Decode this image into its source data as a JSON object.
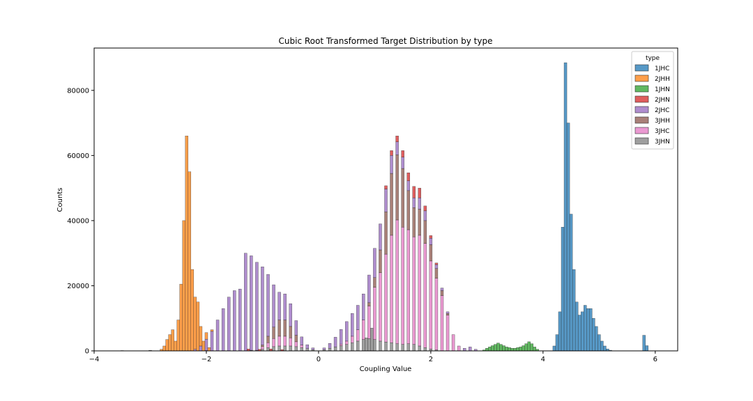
{
  "chart_data": {
    "type": "bar",
    "subtype": "stacked-histogram",
    "title": "Cubic Root Transformed Target Distribution by type",
    "xlabel": "Coupling Value",
    "ylabel": "Counts",
    "xlim": [
      -4.0,
      6.4
    ],
    "ylim": [
      0,
      93000
    ],
    "xticks": [
      {
        "value": -4,
        "label": "−4"
      },
      {
        "value": -2,
        "label": "−2"
      },
      {
        "value": 0,
        "label": "0"
      },
      {
        "value": 2,
        "label": "2"
      },
      {
        "value": 4,
        "label": "4"
      },
      {
        "value": 6,
        "label": "6"
      }
    ],
    "yticks": [
      {
        "value": 0,
        "label": "0"
      },
      {
        "value": 20000,
        "label": "20000"
      },
      {
        "value": 40000,
        "label": "40000"
      },
      {
        "value": 60000,
        "label": "60000"
      },
      {
        "value": 80000,
        "label": "80000"
      }
    ],
    "grid": false,
    "bin_width": 0.05,
    "legend": {
      "title": "type",
      "placement": "top-right"
    },
    "series_names": [
      "1JHC",
      "2JHH",
      "1JHN",
      "2JHN",
      "2JHC",
      "3JHH",
      "3JHC",
      "3JHN"
    ],
    "stack_order": [
      "3JHN",
      "3JHC",
      "3JHH",
      "2JHC",
      "2JHN",
      "1JHN",
      "2JHH",
      "1JHC"
    ],
    "series": [
      {
        "name": "1JHC",
        "color": "#1f77b4",
        "values": [
          {
            "x": 4.2,
            "y": 1500
          },
          {
            "x": 4.25,
            "y": 5000
          },
          {
            "x": 4.3,
            "y": 12000
          },
          {
            "x": 4.35,
            "y": 38000
          },
          {
            "x": 4.4,
            "y": 88500
          },
          {
            "x": 4.45,
            "y": 70000
          },
          {
            "x": 4.5,
            "y": 42000
          },
          {
            "x": 4.55,
            "y": 25000
          },
          {
            "x": 4.6,
            "y": 15000
          },
          {
            "x": 4.65,
            "y": 11000
          },
          {
            "x": 4.7,
            "y": 12000
          },
          {
            "x": 4.75,
            "y": 14000
          },
          {
            "x": 4.8,
            "y": 13000
          },
          {
            "x": 4.85,
            "y": 13000
          },
          {
            "x": 4.9,
            "y": 10000
          },
          {
            "x": 4.95,
            "y": 7500
          },
          {
            "x": 5.0,
            "y": 5000
          },
          {
            "x": 5.05,
            "y": 3000
          },
          {
            "x": 5.1,
            "y": 1500
          },
          {
            "x": 5.15,
            "y": 600
          },
          {
            "x": 5.2,
            "y": 200
          },
          {
            "x": 5.8,
            "y": 4800
          },
          {
            "x": 5.85,
            "y": 1600
          }
        ]
      },
      {
        "name": "2JHH",
        "color": "#ff7f0e",
        "values": [
          {
            "x": -2.8,
            "y": 500
          },
          {
            "x": -2.75,
            "y": 1500
          },
          {
            "x": -2.7,
            "y": 3500
          },
          {
            "x": -2.65,
            "y": 5000
          },
          {
            "x": -2.6,
            "y": 6500
          },
          {
            "x": -2.55,
            "y": 3000
          },
          {
            "x": -2.5,
            "y": 9500
          },
          {
            "x": -2.45,
            "y": 20500
          },
          {
            "x": -2.4,
            "y": 40000
          },
          {
            "x": -2.35,
            "y": 66000
          },
          {
            "x": -2.3,
            "y": 55000
          },
          {
            "x": -2.25,
            "y": 25000
          },
          {
            "x": -2.2,
            "y": 16000
          },
          {
            "x": -2.15,
            "y": 15000
          },
          {
            "x": -2.1,
            "y": 6000
          },
          {
            "x": -2.05,
            "y": 3000
          },
          {
            "x": -2.0,
            "y": 2000
          },
          {
            "x": -1.95,
            "y": 1000
          },
          {
            "x": -1.9,
            "y": 500
          }
        ]
      },
      {
        "name": "1JHN",
        "color": "#2ca02c",
        "values": [
          {
            "x": 2.95,
            "y": 300
          },
          {
            "x": 3.0,
            "y": 800
          },
          {
            "x": 3.05,
            "y": 1200
          },
          {
            "x": 3.1,
            "y": 1600
          },
          {
            "x": 3.15,
            "y": 2000
          },
          {
            "x": 3.2,
            "y": 2400
          },
          {
            "x": 3.25,
            "y": 2000
          },
          {
            "x": 3.3,
            "y": 1600
          },
          {
            "x": 3.35,
            "y": 1200
          },
          {
            "x": 3.4,
            "y": 1000
          },
          {
            "x": 3.45,
            "y": 800
          },
          {
            "x": 3.5,
            "y": 800
          },
          {
            "x": 3.55,
            "y": 1000
          },
          {
            "x": 3.6,
            "y": 1200
          },
          {
            "x": 3.65,
            "y": 1600
          },
          {
            "x": 3.7,
            "y": 2200
          },
          {
            "x": 3.75,
            "y": 2800
          },
          {
            "x": 3.8,
            "y": 2200
          },
          {
            "x": 3.85,
            "y": 1200
          },
          {
            "x": 3.9,
            "y": 500
          }
        ]
      },
      {
        "name": "2JHN",
        "color": "#d62728",
        "values": [
          {
            "x": -1.25,
            "y": 600
          },
          {
            "x": -1.05,
            "y": 500
          },
          {
            "x": -0.85,
            "y": 600
          },
          {
            "x": -0.65,
            "y": 400
          },
          {
            "x": 1.2,
            "y": 1000
          },
          {
            "x": 1.3,
            "y": 1500
          },
          {
            "x": 1.4,
            "y": 1800
          },
          {
            "x": 1.5,
            "y": 2000
          },
          {
            "x": 1.6,
            "y": 2500
          },
          {
            "x": 1.7,
            "y": 3500
          },
          {
            "x": 1.8,
            "y": 3000
          },
          {
            "x": 1.9,
            "y": 1500
          },
          {
            "x": 2.0,
            "y": 800
          },
          {
            "x": 2.1,
            "y": 500
          }
        ]
      },
      {
        "name": "2JHC",
        "color": "#9467bd",
        "values": [
          {
            "x": -2.2,
            "y": 500
          },
          {
            "x": -2.1,
            "y": 1500
          },
          {
            "x": -2.0,
            "y": 3500
          },
          {
            "x": -1.9,
            "y": 6000
          },
          {
            "x": -1.8,
            "y": 9500
          },
          {
            "x": -1.7,
            "y": 13000
          },
          {
            "x": -1.6,
            "y": 16500
          },
          {
            "x": -1.5,
            "y": 18500
          },
          {
            "x": -1.4,
            "y": 19000
          },
          {
            "x": -1.3,
            "y": 30000
          },
          {
            "x": -1.2,
            "y": 29000
          },
          {
            "x": -1.1,
            "y": 27000
          },
          {
            "x": -1.0,
            "y": 24000
          },
          {
            "x": -0.9,
            "y": 19000
          },
          {
            "x": -0.8,
            "y": 13000
          },
          {
            "x": -0.7,
            "y": 8500
          },
          {
            "x": -0.6,
            "y": 8000
          },
          {
            "x": -0.5,
            "y": 7000
          },
          {
            "x": -0.4,
            "y": 4500
          },
          {
            "x": -0.3,
            "y": 2500
          },
          {
            "x": -0.2,
            "y": 1200
          },
          {
            "x": -0.1,
            "y": 500
          },
          {
            "x": 0.1,
            "y": 500
          },
          {
            "x": 0.2,
            "y": 1500
          },
          {
            "x": 0.3,
            "y": 3000
          },
          {
            "x": 0.4,
            "y": 4500
          },
          {
            "x": 0.5,
            "y": 6000
          },
          {
            "x": 0.6,
            "y": 7000
          },
          {
            "x": 0.7,
            "y": 7500
          },
          {
            "x": 0.8,
            "y": 8000
          },
          {
            "x": 0.9,
            "y": 8500
          },
          {
            "x": 1.0,
            "y": 9000
          },
          {
            "x": 1.1,
            "y": 8000
          },
          {
            "x": 1.2,
            "y": 7000
          },
          {
            "x": 1.3,
            "y": 5500
          },
          {
            "x": 1.4,
            "y": 4000
          },
          {
            "x": 1.5,
            "y": 3500
          },
          {
            "x": 1.6,
            "y": 3000
          },
          {
            "x": 1.7,
            "y": 3000
          },
          {
            "x": 1.8,
            "y": 3500
          },
          {
            "x": 1.9,
            "y": 3000
          },
          {
            "x": 2.0,
            "y": 2000
          },
          {
            "x": 2.1,
            "y": 1200
          },
          {
            "x": 2.2,
            "y": 800
          },
          {
            "x": 2.3,
            "y": 500
          },
          {
            "x": 2.6,
            "y": 800
          },
          {
            "x": 2.7,
            "y": 1200
          },
          {
            "x": 2.8,
            "y": 500
          }
        ]
      },
      {
        "name": "3JHH",
        "color": "#8c564b",
        "values": [
          {
            "x": -1.0,
            "y": 500
          },
          {
            "x": -0.9,
            "y": 2000
          },
          {
            "x": -0.8,
            "y": 3500
          },
          {
            "x": -0.7,
            "y": 5000
          },
          {
            "x": -0.6,
            "y": 5000
          },
          {
            "x": -0.5,
            "y": 3500
          },
          {
            "x": -0.4,
            "y": 2000
          },
          {
            "x": 0.9,
            "y": 1000
          },
          {
            "x": 1.0,
            "y": 3000
          },
          {
            "x": 1.1,
            "y": 7000
          },
          {
            "x": 1.2,
            "y": 13000
          },
          {
            "x": 1.3,
            "y": 19000
          },
          {
            "x": 1.4,
            "y": 20000
          },
          {
            "x": 1.5,
            "y": 18000
          },
          {
            "x": 1.6,
            "y": 12000
          },
          {
            "x": 1.7,
            "y": 9000
          },
          {
            "x": 1.8,
            "y": 8000
          },
          {
            "x": 1.9,
            "y": 7000
          },
          {
            "x": 2.0,
            "y": 5000
          },
          {
            "x": 2.1,
            "y": 3000
          },
          {
            "x": 2.2,
            "y": 1500
          },
          {
            "x": 2.3,
            "y": 500
          }
        ]
      },
      {
        "name": "3JHC",
        "color": "#e377c2",
        "values": [
          {
            "x": -1.1,
            "y": 200
          },
          {
            "x": -1.0,
            "y": 800
          },
          {
            "x": -0.9,
            "y": 1500
          },
          {
            "x": -0.8,
            "y": 2500
          },
          {
            "x": -0.7,
            "y": 3000
          },
          {
            "x": -0.6,
            "y": 3000
          },
          {
            "x": -0.5,
            "y": 2500
          },
          {
            "x": -0.4,
            "y": 1500
          },
          {
            "x": -0.3,
            "y": 800
          },
          {
            "x": 0.4,
            "y": 500
          },
          {
            "x": 0.5,
            "y": 1000
          },
          {
            "x": 0.6,
            "y": 2000
          },
          {
            "x": 0.7,
            "y": 3500
          },
          {
            "x": 0.8,
            "y": 6000
          },
          {
            "x": 0.9,
            "y": 10000
          },
          {
            "x": 1.0,
            "y": 16000
          },
          {
            "x": 1.1,
            "y": 21000
          },
          {
            "x": 1.2,
            "y": 27000
          },
          {
            "x": 1.3,
            "y": 33000
          },
          {
            "x": 1.4,
            "y": 38000
          },
          {
            "x": 1.5,
            "y": 36000
          },
          {
            "x": 1.6,
            "y": 35000
          },
          {
            "x": 1.7,
            "y": 33000
          },
          {
            "x": 1.8,
            "y": 34000
          },
          {
            "x": 1.9,
            "y": 32000
          },
          {
            "x": 2.0,
            "y": 27000
          },
          {
            "x": 2.1,
            "y": 22000
          },
          {
            "x": 2.2,
            "y": 17000
          },
          {
            "x": 2.3,
            "y": 11000
          },
          {
            "x": 2.4,
            "y": 5000
          },
          {
            "x": 2.5,
            "y": 1500
          }
        ]
      },
      {
        "name": "3JHN",
        "color": "#7f7f7f",
        "values": [
          {
            "x": -3.5,
            "y": 100
          },
          {
            "x": -3.0,
            "y": 150
          },
          {
            "x": -2.0,
            "y": 100
          },
          {
            "x": -1.2,
            "y": 200
          },
          {
            "x": -1.0,
            "y": 500
          },
          {
            "x": -0.9,
            "y": 1000
          },
          {
            "x": -0.8,
            "y": 1300
          },
          {
            "x": -0.7,
            "y": 1500
          },
          {
            "x": -0.6,
            "y": 1500
          },
          {
            "x": -0.5,
            "y": 1500
          },
          {
            "x": -0.4,
            "y": 1300
          },
          {
            "x": -0.3,
            "y": 1000
          },
          {
            "x": -0.2,
            "y": 700
          },
          {
            "x": -0.1,
            "y": 400
          },
          {
            "x": 0.1,
            "y": 400
          },
          {
            "x": 0.2,
            "y": 800
          },
          {
            "x": 0.3,
            "y": 1200
          },
          {
            "x": 0.4,
            "y": 1600
          },
          {
            "x": 0.5,
            "y": 2000
          },
          {
            "x": 0.6,
            "y": 2500
          },
          {
            "x": 0.7,
            "y": 3000
          },
          {
            "x": 0.8,
            "y": 3500
          },
          {
            "x": 0.85,
            "y": 4000
          },
          {
            "x": 0.9,
            "y": 3800
          },
          {
            "x": 0.95,
            "y": 7000
          },
          {
            "x": 1.0,
            "y": 3500
          },
          {
            "x": 1.1,
            "y": 3000
          },
          {
            "x": 1.2,
            "y": 2700
          },
          {
            "x": 1.3,
            "y": 2500
          },
          {
            "x": 1.4,
            "y": 2200
          },
          {
            "x": 1.5,
            "y": 2000
          },
          {
            "x": 1.6,
            "y": 2200
          },
          {
            "x": 1.7,
            "y": 2000
          },
          {
            "x": 1.8,
            "y": 1500
          },
          {
            "x": 1.9,
            "y": 1000
          },
          {
            "x": 2.0,
            "y": 600
          },
          {
            "x": 2.1,
            "y": 300
          }
        ]
      }
    ]
  }
}
